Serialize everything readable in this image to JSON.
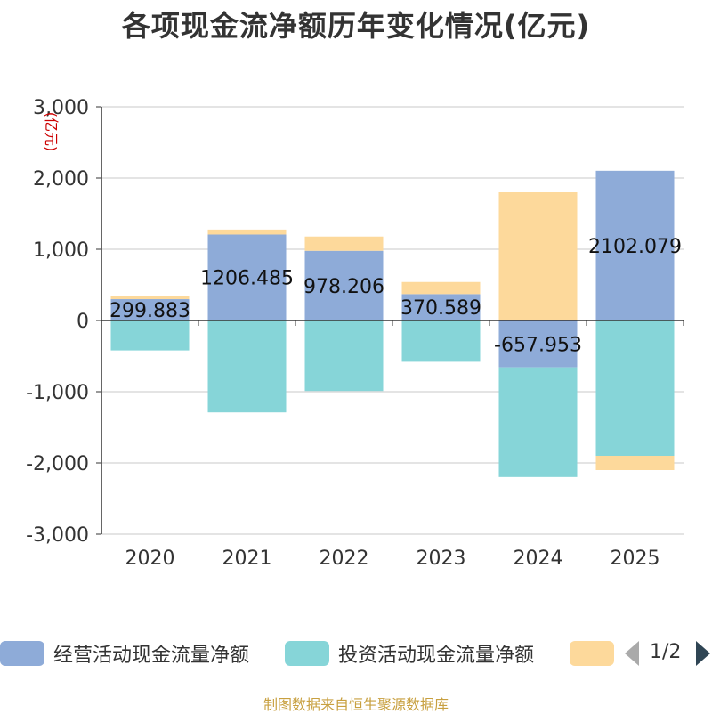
{
  "chart_data": {
    "type": "bar",
    "stacked": true,
    "title": "各项现金流净额历年变化情况(亿元)",
    "ylabel": "(亿元)",
    "xlabel": "",
    "ylim": [
      -3000,
      3000
    ],
    "yticks": [
      3000,
      2000,
      1000,
      0,
      -1000,
      -2000,
      -3000
    ],
    "ytick_labels": [
      "3,000",
      "2,000",
      "1,000",
      "0",
      "-1,000",
      "-2,000",
      "-3,000"
    ],
    "categories": [
      "2020",
      "2021",
      "2022",
      "2023",
      "2024",
      "2025"
    ],
    "series": [
      {
        "name": "经营活动现金流量净额",
        "color": "#8eabd8",
        "values": [
          299.883,
          1206.485,
          978.206,
          370.589,
          -657.953,
          2102.079
        ],
        "labels": [
          "299.883",
          "1206.485",
          "978.206",
          "370.589",
          "-657.953",
          "2102.079"
        ]
      },
      {
        "name": "投资活动现金流量净额",
        "color": "#86d5d8",
        "values": [
          -420,
          -1290,
          -990,
          -580,
          -1540,
          -1900
        ]
      },
      {
        "name": "",
        "color": "#fdd99b",
        "values": [
          50,
          70,
          200,
          170,
          1800,
          -200
        ]
      }
    ],
    "legend_position": "bottom",
    "grid": true
  },
  "legend": {
    "items": [
      "经营活动现金流量净额",
      "投资活动现金流量净额",
      ""
    ],
    "page": "1/2"
  },
  "source": "制图数据来自恒生聚源数据库"
}
